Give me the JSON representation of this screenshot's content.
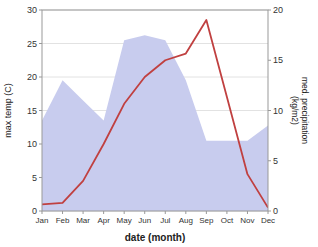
{
  "chart_data": {
    "type": "line",
    "xlabel": "date (month)",
    "ylabel": "max temp (C)",
    "y2label": "med. precipitation\n(kg/m2)",
    "categories": [
      "Jan",
      "Feb",
      "Mar",
      "Apr",
      "May",
      "Jun",
      "Jul",
      "Aug",
      "Sep",
      "Oct",
      "Nov",
      "Dec"
    ],
    "series": [
      {
        "type": "area",
        "axis": "y2",
        "color": "#c8ccee",
        "values": [
          9.0,
          13.0,
          11.0,
          9.0,
          17.0,
          17.5,
          17.0,
          13.0,
          7.0,
          7.0,
          7.0,
          8.5
        ]
      },
      {
        "type": "line",
        "color": "#c04040",
        "values": [
          1.0,
          1.2,
          4.5,
          10.0,
          16.0,
          20.0,
          22.5,
          23.5,
          28.5,
          17.0,
          5.5,
          0.5
        ]
      }
    ],
    "ylim": [
      0,
      30
    ],
    "yticks": [
      0,
      5,
      10,
      15,
      20,
      25,
      30
    ],
    "y2lim": [
      0,
      20
    ],
    "y2ticks": [
      0,
      5,
      10,
      15,
      20
    ],
    "grid": true
  }
}
